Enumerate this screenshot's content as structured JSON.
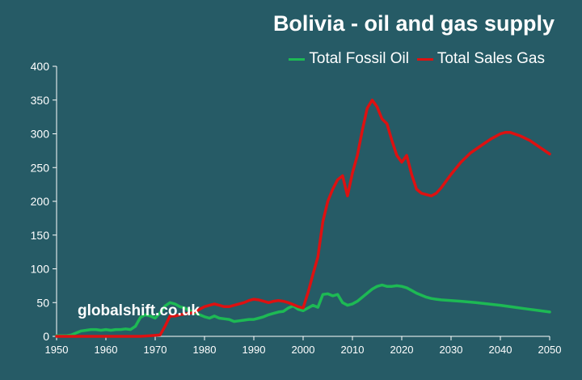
{
  "chart_data": {
    "type": "line",
    "title": "Bolivia - oil and gas supply",
    "watermark": "globalshift.co.uk",
    "xlim": [
      1950,
      2050
    ],
    "ylim": [
      0,
      400
    ],
    "x_ticks": [
      "1950",
      "1960",
      "1970",
      "1980",
      "1990",
      "2000",
      "2010",
      "2020",
      "2030",
      "2040",
      "2050"
    ],
    "y_ticks": [
      "0",
      "50",
      "100",
      "150",
      "200",
      "250",
      "300",
      "350",
      "400"
    ],
    "grid": false,
    "legend_position": "top-right",
    "background_color": "#265B66",
    "series": [
      {
        "name": "Total Fossil Oil",
        "color": "#1DB954",
        "points": [
          [
            1950,
            1
          ],
          [
            1952,
            1
          ],
          [
            1953,
            2
          ],
          [
            1954,
            5
          ],
          [
            1955,
            8
          ],
          [
            1956,
            9
          ],
          [
            1957,
            10
          ],
          [
            1958,
            10
          ],
          [
            1959,
            9
          ],
          [
            1960,
            10
          ],
          [
            1961,
            9
          ],
          [
            1962,
            10
          ],
          [
            1963,
            10
          ],
          [
            1964,
            11
          ],
          [
            1965,
            10
          ],
          [
            1966,
            15
          ],
          [
            1967,
            28
          ],
          [
            1968,
            32
          ],
          [
            1969,
            30
          ],
          [
            1970,
            27
          ],
          [
            1971,
            35
          ],
          [
            1972,
            45
          ],
          [
            1973,
            50
          ],
          [
            1974,
            48
          ],
          [
            1975,
            44
          ],
          [
            1976,
            42
          ],
          [
            1977,
            38
          ],
          [
            1978,
            35
          ],
          [
            1979,
            32
          ],
          [
            1980,
            29
          ],
          [
            1981,
            27
          ],
          [
            1982,
            30
          ],
          [
            1983,
            27
          ],
          [
            1984,
            26
          ],
          [
            1985,
            25
          ],
          [
            1986,
            22
          ],
          [
            1987,
            23
          ],
          [
            1988,
            24
          ],
          [
            1989,
            25
          ],
          [
            1990,
            25
          ],
          [
            1991,
            27
          ],
          [
            1992,
            29
          ],
          [
            1993,
            32
          ],
          [
            1994,
            34
          ],
          [
            1995,
            36
          ],
          [
            1996,
            37
          ],
          [
            1997,
            42
          ],
          [
            1998,
            45
          ],
          [
            1999,
            40
          ],
          [
            2000,
            38
          ],
          [
            2001,
            42
          ],
          [
            2002,
            46
          ],
          [
            2003,
            43
          ],
          [
            2004,
            62
          ],
          [
            2005,
            63
          ],
          [
            2006,
            60
          ],
          [
            2007,
            62
          ],
          [
            2008,
            50
          ],
          [
            2009,
            46
          ],
          [
            2010,
            48
          ],
          [
            2011,
            52
          ],
          [
            2012,
            58
          ],
          [
            2013,
            64
          ],
          [
            2014,
            70
          ],
          [
            2015,
            74
          ],
          [
            2016,
            76
          ],
          [
            2017,
            74
          ],
          [
            2018,
            74
          ],
          [
            2019,
            75
          ],
          [
            2020,
            74
          ],
          [
            2021,
            72
          ],
          [
            2022,
            68
          ],
          [
            2023,
            64
          ],
          [
            2024,
            61
          ],
          [
            2025,
            58
          ],
          [
            2026,
            56
          ],
          [
            2027,
            55
          ],
          [
            2028,
            54
          ],
          [
            2030,
            53
          ],
          [
            2032,
            52
          ],
          [
            2035,
            50
          ],
          [
            2040,
            46
          ],
          [
            2045,
            41
          ],
          [
            2050,
            36
          ]
        ]
      },
      {
        "name": "Total Sales Gas",
        "color": "#DD1111",
        "points": [
          [
            1950,
            0
          ],
          [
            1960,
            0
          ],
          [
            1967,
            0
          ],
          [
            1969,
            1
          ],
          [
            1971,
            2
          ],
          [
            1972,
            15
          ],
          [
            1973,
            30
          ],
          [
            1974,
            30
          ],
          [
            1975,
            32
          ],
          [
            1976,
            33
          ],
          [
            1977,
            34
          ],
          [
            1978,
            36
          ],
          [
            1979,
            40
          ],
          [
            1980,
            44
          ],
          [
            1981,
            46
          ],
          [
            1982,
            48
          ],
          [
            1983,
            46
          ],
          [
            1984,
            44
          ],
          [
            1985,
            44
          ],
          [
            1986,
            46
          ],
          [
            1987,
            48
          ],
          [
            1988,
            50
          ],
          [
            1989,
            53
          ],
          [
            1990,
            55
          ],
          [
            1991,
            54
          ],
          [
            1992,
            52
          ],
          [
            1993,
            50
          ],
          [
            1994,
            52
          ],
          [
            1995,
            53
          ],
          [
            1996,
            52
          ],
          [
            1997,
            50
          ],
          [
            1998,
            47
          ],
          [
            1999,
            44
          ],
          [
            2000,
            42
          ],
          [
            2001,
            65
          ],
          [
            2002,
            92
          ],
          [
            2003,
            118
          ],
          [
            2004,
            170
          ],
          [
            2005,
            200
          ],
          [
            2006,
            218
          ],
          [
            2007,
            232
          ],
          [
            2008,
            238
          ],
          [
            2009,
            208
          ],
          [
            2010,
            242
          ],
          [
            2011,
            268
          ],
          [
            2012,
            305
          ],
          [
            2013,
            338
          ],
          [
            2014,
            350
          ],
          [
            2015,
            340
          ],
          [
            2016,
            322
          ],
          [
            2017,
            315
          ],
          [
            2018,
            290
          ],
          [
            2019,
            268
          ],
          [
            2020,
            258
          ],
          [
            2021,
            268
          ],
          [
            2022,
            240
          ],
          [
            2023,
            218
          ],
          [
            2024,
            212
          ],
          [
            2025,
            210
          ],
          [
            2026,
            208
          ],
          [
            2027,
            212
          ],
          [
            2028,
            220
          ],
          [
            2030,
            240
          ],
          [
            2032,
            258
          ],
          [
            2034,
            272
          ],
          [
            2036,
            282
          ],
          [
            2038,
            292
          ],
          [
            2040,
            300
          ],
          [
            2041,
            302
          ],
          [
            2042,
            302
          ],
          [
            2044,
            297
          ],
          [
            2046,
            290
          ],
          [
            2048,
            280
          ],
          [
            2050,
            270
          ]
        ]
      }
    ]
  }
}
